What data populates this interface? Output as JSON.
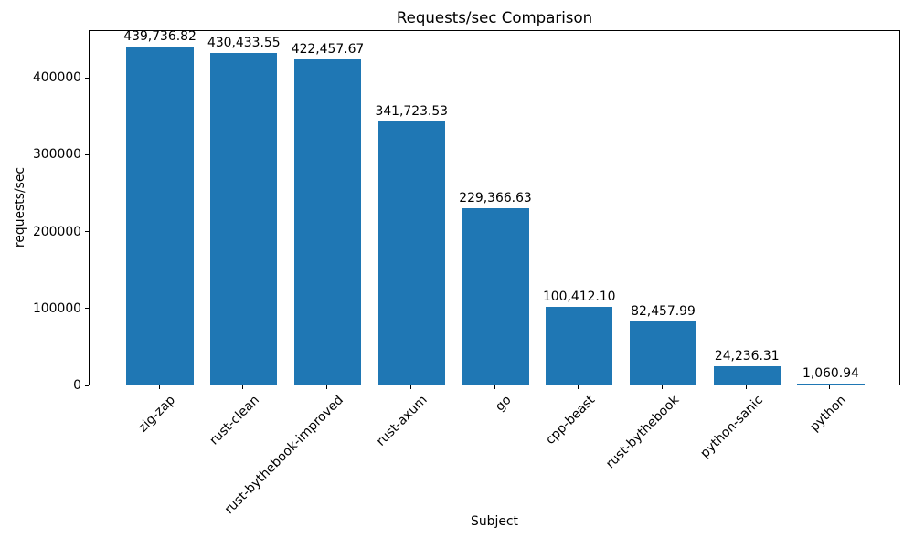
{
  "chart_data": {
    "type": "bar",
    "title": "Requests/sec Comparison",
    "xlabel": "Subject",
    "ylabel": "requests/sec",
    "categories": [
      "zig-zap",
      "rust-clean",
      "rust-bythebook-improved",
      "rust-axum",
      "go",
      "cpp-beast",
      "rust-bythebook",
      "python-sanic",
      "python"
    ],
    "values": [
      439736.82,
      430433.55,
      422457.67,
      341723.53,
      229366.63,
      100412.1,
      82457.99,
      24236.31,
      1060.94
    ],
    "value_labels": [
      "439,736.82",
      "430,433.55",
      "422,457.67",
      "341,723.53",
      "229,366.63",
      "100,412.10",
      "82,457.99",
      "24,236.31",
      "1,060.94"
    ],
    "yticks": [
      0,
      100000,
      200000,
      300000,
      400000
    ],
    "ytick_labels": [
      "0",
      "100000",
      "200000",
      "300000",
      "400000"
    ],
    "ylim": [
      0,
      461724
    ],
    "bar_color": "#1f77b4",
    "grid": false,
    "legend": null,
    "x_tick_rotation": 45
  }
}
